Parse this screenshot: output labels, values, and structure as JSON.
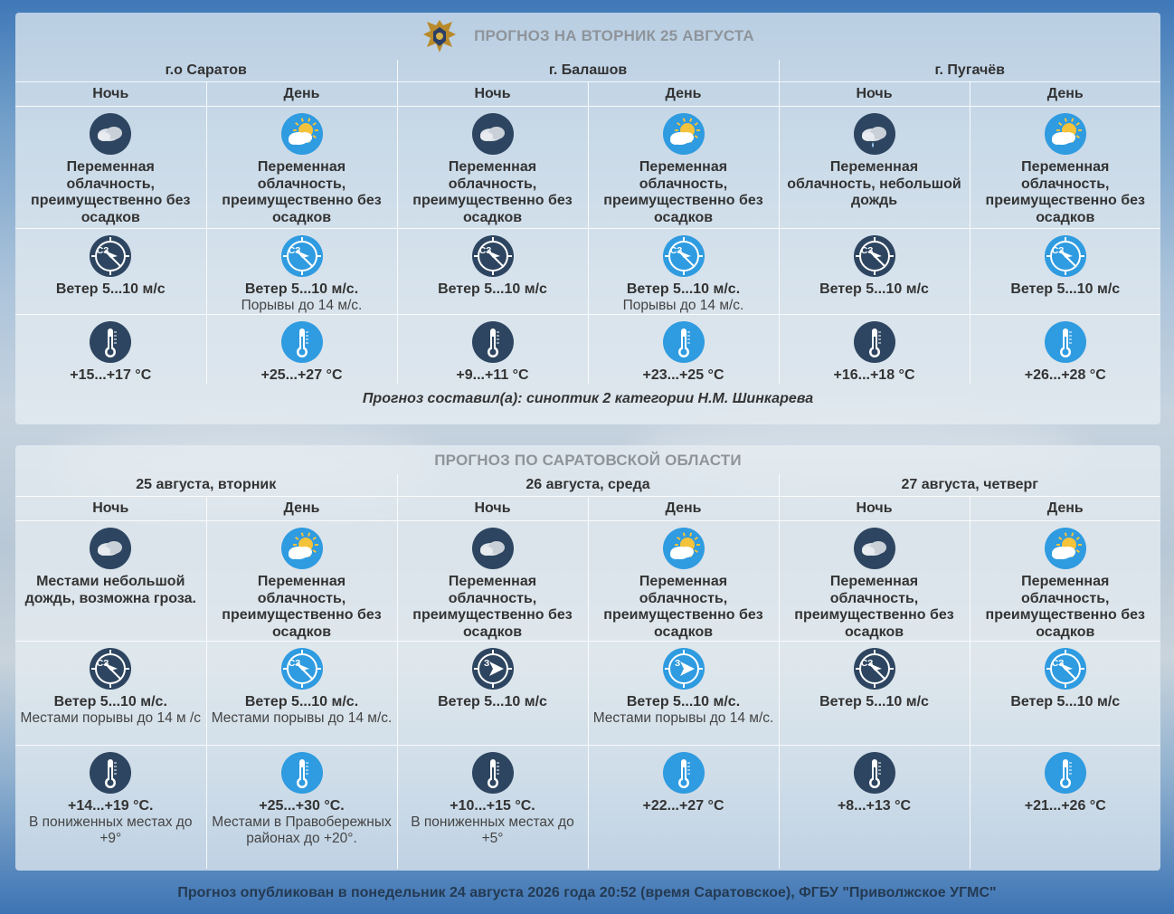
{
  "top": {
    "title": "ПРОГНОЗ НА ВТОРНИК 25 АВГУСТА",
    "columns": [
      {
        "header": "г.о Саратов",
        "parts": [
          {
            "label": "Ночь",
            "icon": "cloud-night-icon",
            "desc": "Переменная облачность, преимущественно без осадков",
            "wind": "Ветер 5...10 м/с",
            "wind_dir": "СЗ",
            "wind_extra": "",
            "temp": "+15...+17 °C",
            "temp_extra": ""
          },
          {
            "label": "День",
            "icon": "sun-cloud-icon",
            "desc": "Переменная облачность, преимущественно без осадков",
            "wind": "Ветер 5...10 м/с.",
            "wind_dir": "СЗ",
            "wind_extra": "Порывы до 14 м/с.",
            "temp": "+25...+27 °C",
            "temp_extra": ""
          }
        ]
      },
      {
        "header": "г. Балашов",
        "parts": [
          {
            "label": "Ночь",
            "icon": "cloud-night-icon",
            "desc": "Переменная облачность, преимущественно без осадков",
            "wind": "Ветер 5...10 м/с",
            "wind_dir": "СЗ",
            "wind_extra": "",
            "temp": "+9...+11 °C",
            "temp_extra": ""
          },
          {
            "label": "День",
            "icon": "sun-cloud-icon",
            "desc": "Переменная облачность, преимущественно без осадков",
            "wind": "Ветер 5...10 м/с.",
            "wind_dir": "СЗ",
            "wind_extra": "Порывы до 14 м/с.",
            "temp": "+23...+25 °C",
            "temp_extra": ""
          }
        ]
      },
      {
        "header": "г. Пугачёв",
        "parts": [
          {
            "label": "Ночь",
            "icon": "cloud-rain-night-icon",
            "desc": "Переменная облачность, небольшой дождь",
            "wind": "Ветер 5...10 м/с",
            "wind_dir": "СЗ",
            "wind_extra": "",
            "temp": "+16...+18 °C",
            "temp_extra": ""
          },
          {
            "label": "День",
            "icon": "sun-cloud-icon",
            "desc": "Переменная облачность, преимущественно без осадков",
            "wind": "Ветер 5...10 м/с",
            "wind_dir": "СЗ",
            "wind_extra": "",
            "temp": "+26...+28 °C",
            "temp_extra": ""
          }
        ]
      }
    ],
    "author": "Прогноз составил(а): синоптик 2 категории Н.М. Шинкарева"
  },
  "region": {
    "title": "ПРОГНОЗ ПО САРАТОВСКОЙ ОБЛАСТИ",
    "columns": [
      {
        "header": "25 августа, вторник",
        "parts": [
          {
            "label": "Ночь",
            "icon": "cloud-night-icon",
            "desc": "Местами небольшой дождь, возможна гроза.",
            "wind": "Ветер 5...10 м/с.",
            "wind_dir": "СЗ",
            "wind_extra": "Местами порывы до 14 м /с",
            "temp": "+14...+19 °C.",
            "temp_extra": "В пониженных местах до +9°"
          },
          {
            "label": "День",
            "icon": "sun-cloud-icon",
            "desc": "Переменная облачность, преимущественно без осадков",
            "wind": "Ветер 5...10 м/с.",
            "wind_dir": "СЗ",
            "wind_extra": "Местами порывы до 14 м/с.",
            "temp": "+25...+30 °C.",
            "temp_extra": "Местами в Правобережных районах до +20°."
          }
        ]
      },
      {
        "header": "26 августа, среда",
        "parts": [
          {
            "label": "Ночь",
            "icon": "cloud-night-icon",
            "desc": "Переменная облачность, преимущественно без осадков",
            "wind": "Ветер 5...10 м/с",
            "wind_dir": "З",
            "wind_extra": "",
            "temp": "+10...+15 °C.",
            "temp_extra": "В пониженных местах до +5°"
          },
          {
            "label": "День",
            "icon": "sun-cloud-icon",
            "desc": "Переменная облачность, преимущественно без осадков",
            "wind": "Ветер 5...10 м/с.",
            "wind_dir": "З",
            "wind_extra": "Местами порывы до 14 м/с.",
            "temp": "+22...+27 °C",
            "temp_extra": ""
          }
        ]
      },
      {
        "header": "27 августа, четверг",
        "parts": [
          {
            "label": "Ночь",
            "icon": "cloud-night-icon",
            "desc": "Переменная облачность, преимущественно без осадков",
            "wind": "Ветер 5...10 м/с",
            "wind_dir": "СЗ",
            "wind_extra": "",
            "temp": "+8...+13 °C",
            "temp_extra": ""
          },
          {
            "label": "День",
            "icon": "sun-cloud-icon",
            "desc": "Переменная облачность, преимущественно без осадков",
            "wind": "Ветер 5...10 м/с",
            "wind_dir": "СЗ",
            "wind_extra": "",
            "temp": "+21...+26 °C",
            "temp_extra": ""
          }
        ]
      }
    ]
  },
  "footer": "Прогноз опубликован в понедельник 24 августа 2026 года 20:52 (время Саратовское), ФГБУ \"Приволжское УГМС\"",
  "colors": {
    "night": "#2d4560",
    "day": "#2f9be0",
    "panel": "#e8eef3",
    "text": "#333333",
    "title": "#8e949a"
  }
}
